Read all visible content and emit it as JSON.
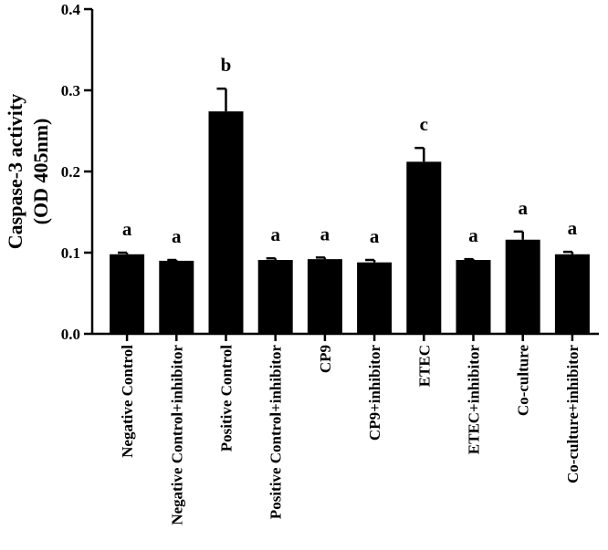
{
  "chart_data": {
    "type": "bar",
    "ylabel_lines": [
      "Caspase-3 activity",
      "(OD 405nm)"
    ],
    "ylim": [
      0.0,
      0.4
    ],
    "yticks": [
      "0.0",
      "0.1",
      "0.2",
      "0.3",
      "0.4"
    ],
    "grid": false,
    "categories": [
      "Negative Control",
      "Negative Control+inhibitor",
      "Positive Control",
      "Positive Control+inhibitor",
      "CP9",
      "CP9+inhibitor",
      "ETEC",
      "ETEC+inhibitor",
      "Co-culture",
      "Co-culture+inhibitor"
    ],
    "values": [
      0.098,
      0.09,
      0.274,
      0.091,
      0.092,
      0.088,
      0.212,
      0.091,
      0.116,
      0.098
    ],
    "errors": [
      0.002,
      0.001,
      0.028,
      0.002,
      0.002,
      0.003,
      0.017,
      0.001,
      0.01,
      0.003
    ],
    "significance": [
      "a",
      "a",
      "b",
      "a",
      "a",
      "a",
      "c",
      "a",
      "a",
      "a"
    ],
    "bar_color": "#000000"
  }
}
